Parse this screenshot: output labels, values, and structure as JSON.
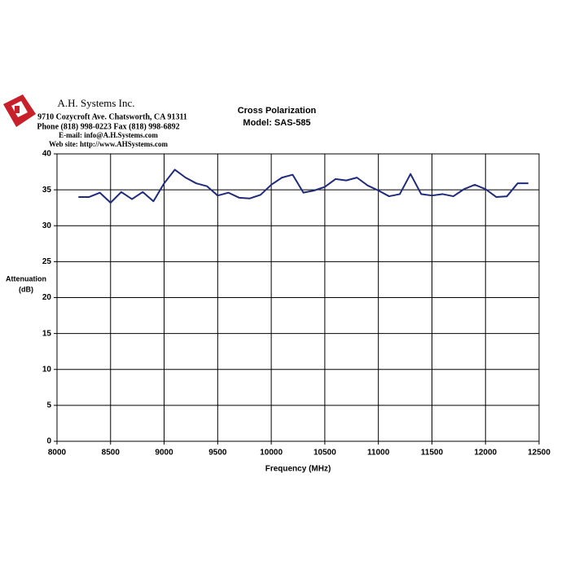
{
  "chart_data": {
    "type": "line",
    "title": "Cross Polarization",
    "subtitle": "Model: SAS-585",
    "annotations": [
      "A.H. Systems Inc.",
      "9710 Cozycroft Ave. Chatsworth, CA 91311",
      "Phone (818) 998-0223 Fax (818) 998-6892",
      "E-mail: info@A.H.Systems.com",
      "Web site: http://www.AHSystems.com"
    ],
    "xlabel": "Frequency (MHz)",
    "ylabel": [
      "Attenuation",
      "(dB)"
    ],
    "x": [
      8200,
      8300,
      8400,
      8500,
      8600,
      8700,
      8800,
      8900,
      9000,
      9100,
      9200,
      9300,
      9400,
      9500,
      9600,
      9700,
      9800,
      9900,
      10000,
      10100,
      10200,
      10300,
      10400,
      10500,
      10600,
      10700,
      10800,
      10900,
      11000,
      11100,
      11200,
      11300,
      11400,
      11500,
      11600,
      11700,
      11800,
      11900,
      12000,
      12100,
      12200,
      12300,
      12400
    ],
    "series": [
      {
        "color": "#1f2a7a",
        "values": [
          34.0,
          34.0,
          34.6,
          33.2,
          34.7,
          33.7,
          34.7,
          33.4,
          35.9,
          37.8,
          36.7,
          35.9,
          35.5,
          34.2,
          34.6,
          33.9,
          33.8,
          34.3,
          35.7,
          36.7,
          37.1,
          34.6,
          34.9,
          35.4,
          36.5,
          36.3,
          36.7,
          35.6,
          34.9,
          34.1,
          34.4,
          37.2,
          34.4,
          34.2,
          34.4,
          34.1,
          35.1,
          35.7,
          35.1,
          34.0,
          34.1,
          35.9,
          35.9
        ]
      }
    ],
    "xlim": [
      8000,
      12500
    ],
    "xticks": [
      8000,
      8500,
      9000,
      9500,
      10000,
      10500,
      11000,
      11500,
      12000,
      12500
    ],
    "ylim": [
      0,
      40
    ],
    "yticks": [
      0,
      5,
      10,
      15,
      20,
      25,
      30,
      35,
      40
    ],
    "grid": true
  }
}
